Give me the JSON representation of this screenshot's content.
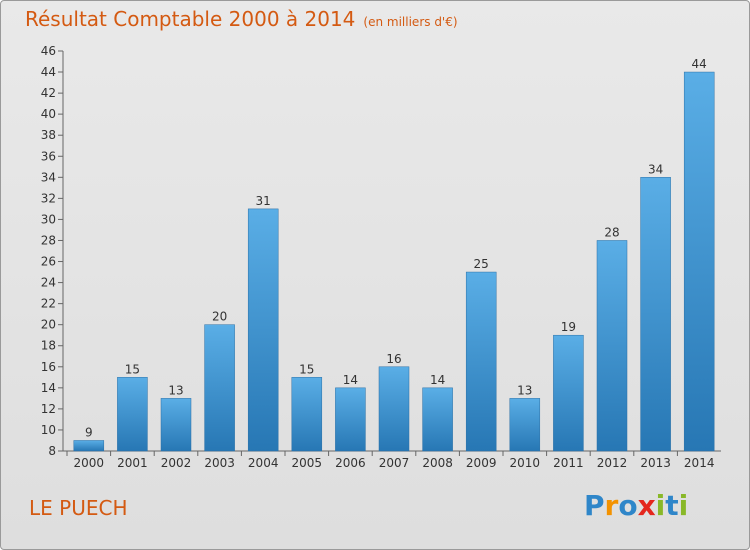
{
  "header": {
    "title": "Résultat Comptable 2000 à 2014",
    "subtitle": "(en milliers d'€)"
  },
  "footer": {
    "town": "LE PUECH",
    "logo_text": "Proxiti",
    "logo_letters": [
      {
        "char": "P",
        "color": "#2f86c9"
      },
      {
        "char": "r",
        "color": "#f39200"
      },
      {
        "char": "o",
        "color": "#2f86c9"
      },
      {
        "char": "x",
        "color": "#e4261d"
      },
      {
        "char": "i",
        "color": "#89b828"
      },
      {
        "char": "t",
        "color": "#2f86c9"
      },
      {
        "char": "i",
        "color": "#89b828"
      }
    ]
  },
  "colors": {
    "accent": "#d45a12",
    "bar_light": "#5aaee6",
    "bar_dark": "#2777b4"
  },
  "chart_data": {
    "type": "bar",
    "categories": [
      "2000",
      "2001",
      "2002",
      "2003",
      "2004",
      "2005",
      "2006",
      "2007",
      "2008",
      "2009",
      "2010",
      "2011",
      "2012",
      "2013",
      "2014"
    ],
    "values": [
      9,
      15,
      13,
      20,
      31,
      15,
      14,
      16,
      14,
      25,
      13,
      19,
      28,
      34,
      44
    ],
    "ylim": [
      8,
      46
    ],
    "yticks": [
      8,
      10,
      12,
      14,
      16,
      18,
      20,
      22,
      24,
      26,
      28,
      30,
      32,
      34,
      36,
      38,
      40,
      42,
      44,
      46
    ],
    "grid": false,
    "legend": "none"
  }
}
